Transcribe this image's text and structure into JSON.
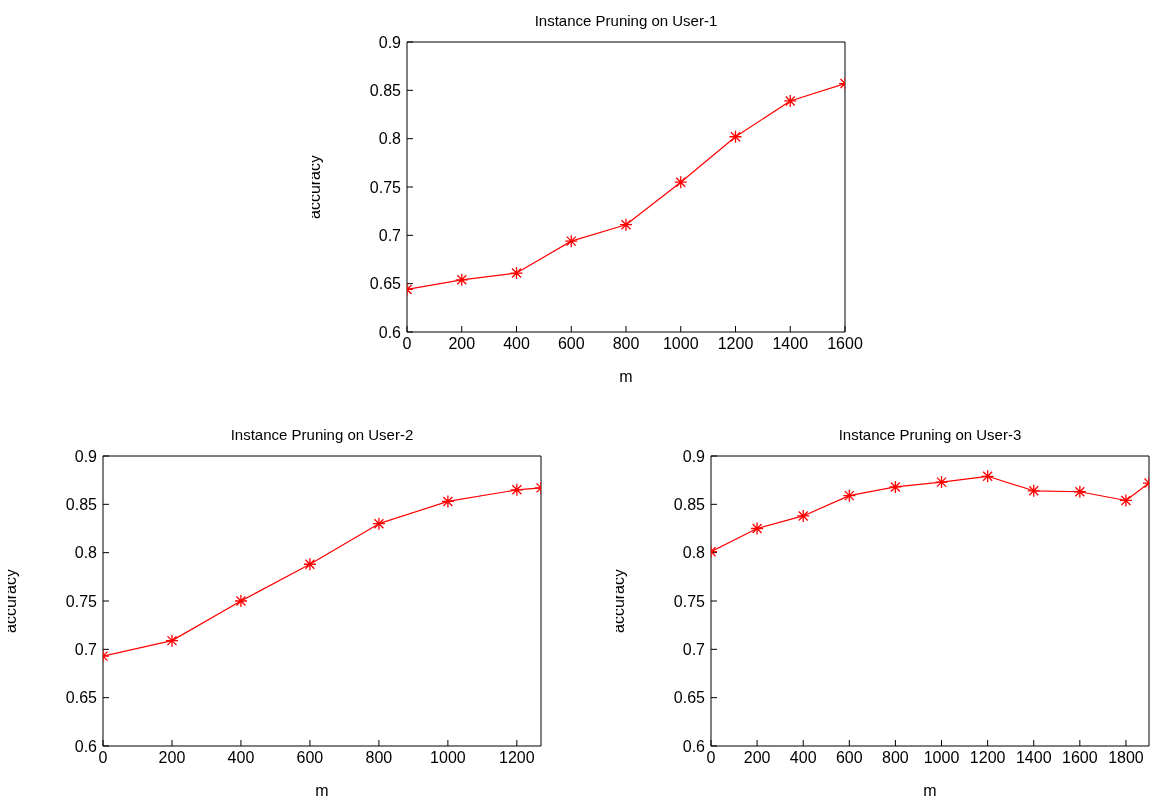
{
  "chart_data": [
    {
      "type": "line",
      "title": "Instance Pruning on User-1",
      "xlabel": "m",
      "ylabel": "accuracy",
      "marker": "cross",
      "x": [
        0,
        200,
        400,
        600,
        800,
        1000,
        1200,
        1400,
        1600
      ],
      "series": [
        {
          "color": "#ff0000",
          "values": [
            0.644,
            0.654,
            0.661,
            0.694,
            0.711,
            0.755,
            0.802,
            0.839,
            0.857
          ]
        }
      ],
      "xlim": [
        0,
        1600
      ],
      "xticks": [
        0,
        200,
        400,
        600,
        800,
        1000,
        1200,
        1400,
        1600
      ],
      "ylim": [
        0.6,
        0.9
      ],
      "yticks": [
        0.6,
        0.65,
        0.7,
        0.75,
        0.8,
        0.85,
        0.9
      ]
    },
    {
      "type": "line",
      "title": "Instance Pruning on User-2",
      "xlabel": "m",
      "ylabel": "accuracy",
      "marker": "cross",
      "x": [
        0,
        200,
        400,
        600,
        800,
        1000,
        1200,
        1270
      ],
      "series": [
        {
          "color": "#ff0000",
          "values": [
            0.693,
            0.709,
            0.75,
            0.788,
            0.83,
            0.853,
            0.865,
            0.867
          ]
        }
      ],
      "xlim": [
        0,
        1270
      ],
      "xticks": [
        0,
        200,
        400,
        600,
        800,
        1000,
        1200
      ],
      "ylim": [
        0.6,
        0.9
      ],
      "yticks": [
        0.6,
        0.65,
        0.7,
        0.75,
        0.8,
        0.85,
        0.9
      ]
    },
    {
      "type": "line",
      "title": "Instance Pruning on User-3",
      "xlabel": "m",
      "ylabel": "accuracy",
      "marker": "cross",
      "x": [
        0,
        200,
        400,
        600,
        800,
        1000,
        1200,
        1400,
        1600,
        1800,
        1900
      ],
      "series": [
        {
          "color": "#ff0000",
          "values": [
            0.801,
            0.825,
            0.838,
            0.859,
            0.868,
            0.873,
            0.879,
            0.864,
            0.863,
            0.854,
            0.872
          ]
        }
      ],
      "xlim": [
        0,
        1900
      ],
      "xticks": [
        0,
        200,
        400,
        600,
        800,
        1000,
        1200,
        1400,
        1600,
        1800
      ],
      "ylim": [
        0.6,
        0.9
      ],
      "yticks": [
        0.6,
        0.65,
        0.7,
        0.75,
        0.8,
        0.85,
        0.9
      ]
    }
  ]
}
